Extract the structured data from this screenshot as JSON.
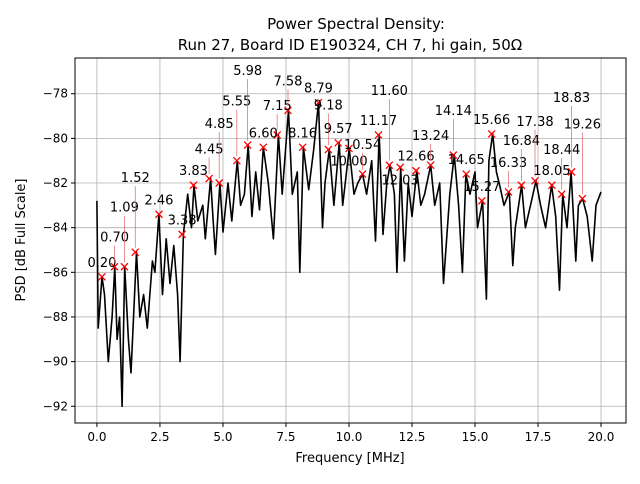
{
  "chart_data": {
    "type": "line",
    "title": "Power Spectral Density:",
    "subtitle": "Run 27, Board ID E190324, CH 7, hi gain, 50Ω",
    "xlabel": "Frequency [MHz]",
    "ylabel": "PSD [dB Full Scale]",
    "xlim": [
      -0.87,
      20.99
    ],
    "ylim": [
      -92.75,
      -76.4
    ],
    "xticks": [
      0.0,
      2.5,
      5.0,
      7.5,
      10.0,
      12.5,
      15.0,
      17.5,
      20.0
    ],
    "xtick_labels": [
      "0.0",
      "2.5",
      "5.0",
      "7.5",
      "10.0",
      "12.5",
      "15.0",
      "17.5",
      "20.0"
    ],
    "yticks": [
      -78,
      -80,
      -82,
      -84,
      -86,
      -88,
      -90,
      -92
    ],
    "ytick_labels": [
      "−78",
      "−80",
      "−82",
      "−84",
      "−86",
      "−88",
      "−90",
      "−92"
    ],
    "grid": true,
    "line_color": "#000000",
    "marker_color": "#ff0000",
    "series": [
      {
        "x": [
          0.0,
          0.05,
          0.2,
          0.3,
          0.45,
          0.6,
          0.71,
          0.8,
          0.9,
          1.0,
          1.1,
          1.25,
          1.35,
          1.57,
          1.7,
          1.85,
          2.0,
          2.2,
          2.3,
          2.46,
          2.6,
          2.75,
          2.9,
          3.05,
          3.2,
          3.3,
          3.43,
          3.6,
          3.75,
          3.85,
          4.0,
          4.2,
          4.3,
          4.51,
          4.6,
          4.7,
          4.88,
          5.0,
          5.2,
          5.35,
          5.57,
          5.7,
          5.85,
          6.0,
          6.15,
          6.3,
          6.45,
          6.6,
          6.8,
          7.0,
          7.2,
          7.35,
          7.6,
          7.75,
          7.95,
          8.05,
          8.19,
          8.4,
          8.6,
          8.79,
          8.95,
          9.05,
          9.22,
          9.4,
          9.61,
          9.75,
          10.01,
          10.2,
          10.35,
          10.54,
          10.7,
          10.9,
          11.05,
          11.2,
          11.35,
          11.5,
          11.63,
          11.8,
          11.9,
          12.05,
          12.2,
          12.35,
          12.5,
          12.69,
          12.85,
          13.0,
          13.24,
          13.4,
          13.6,
          13.75,
          14.0,
          14.18,
          14.35,
          14.5,
          14.64,
          14.8,
          15.0,
          15.1,
          15.3,
          15.45,
          15.55,
          15.7,
          15.85,
          16.0,
          16.15,
          16.36,
          16.5,
          16.6,
          16.85,
          17.0,
          17.2,
          17.42,
          17.6,
          17.8,
          18.04,
          18.2,
          18.35,
          18.48,
          18.65,
          18.81,
          19.0,
          19.1,
          19.27,
          19.45,
          19.65,
          19.8,
          20.0
        ],
        "y": [
          -82.8,
          -88.5,
          -86.2,
          -87,
          -90,
          -88,
          -85.75,
          -89,
          -88,
          -92,
          -85.75,
          -89,
          -90.5,
          -85.1,
          -88,
          -87,
          -88.5,
          -85.5,
          -86,
          -83.4,
          -87,
          -84.5,
          -86.5,
          -84.8,
          -87,
          -90,
          -84.3,
          -82.5,
          -84,
          -82.1,
          -83.7,
          -83,
          -84.5,
          -81.8,
          -83.5,
          -85.2,
          -82,
          -84.2,
          -82,
          -83.7,
          -81,
          -83,
          -82.5,
          -80.3,
          -83.5,
          -81.5,
          -83.2,
          -80.4,
          -82,
          -84.5,
          -79.85,
          -82.5,
          -78.75,
          -82.5,
          -81.5,
          -86,
          -80.4,
          -82.3,
          -80.5,
          -78.4,
          -84,
          -82,
          -80.5,
          -83,
          -80.2,
          -83,
          -80.45,
          -82.5,
          -82,
          -81.6,
          -82.5,
          -81,
          -84.6,
          -79.85,
          -84.3,
          -82,
          -81.2,
          -82.5,
          -86,
          -81.3,
          -85.5,
          -82,
          -83.5,
          -81.45,
          -83,
          -82.5,
          -81.2,
          -83,
          -82,
          -86.5,
          -82.5,
          -80.75,
          -83,
          -86,
          -81.6,
          -82.5,
          -81.5,
          -84,
          -82.8,
          -87.2,
          -81,
          -79.8,
          -81.5,
          -82.2,
          -83,
          -82.4,
          -85.7,
          -84,
          -82.1,
          -84,
          -83,
          -81.9,
          -83,
          -84,
          -82.1,
          -83.5,
          -86.8,
          -82.5,
          -84,
          -81.5,
          -85.5,
          -83,
          -82.7,
          -83.5,
          -85.5,
          -83,
          -82.4
        ]
      }
    ],
    "peaks": [
      {
        "x": 0.2,
        "y": -86.2,
        "label": "0.20"
      },
      {
        "x": 0.7,
        "y": -85.75,
        "label": "0.70"
      },
      {
        "x": 1.09,
        "y": -85.75,
        "label": "1.09"
      },
      {
        "x": 1.52,
        "y": -85.1,
        "label": "1.52"
      },
      {
        "x": 2.46,
        "y": -83.4,
        "label": "2.46"
      },
      {
        "x": 3.38,
        "y": -84.3,
        "label": "3.38"
      },
      {
        "x": 3.83,
        "y": -82.1,
        "label": "3.83"
      },
      {
        "x": 4.45,
        "y": -81.8,
        "label": "4.45"
      },
      {
        "x": 4.85,
        "y": -82.0,
        "label": "4.85"
      },
      {
        "x": 5.55,
        "y": -81.0,
        "label": "5.55"
      },
      {
        "x": 5.98,
        "y": -80.3,
        "label": "5.98"
      },
      {
        "x": 6.6,
        "y": -80.4,
        "label": "6.60"
      },
      {
        "x": 7.15,
        "y": -79.85,
        "label": "7.15"
      },
      {
        "x": 7.58,
        "y": -78.75,
        "label": "7.58"
      },
      {
        "x": 8.16,
        "y": -80.4,
        "label": "8.16"
      },
      {
        "x": 8.79,
        "y": -78.4,
        "label": "8.79"
      },
      {
        "x": 9.18,
        "y": -80.5,
        "label": "9.18"
      },
      {
        "x": 9.57,
        "y": -80.2,
        "label": "9.57"
      },
      {
        "x": 10.0,
        "y": -80.45,
        "label": "10.00"
      },
      {
        "x": 10.54,
        "y": -81.6,
        "label": "10.54"
      },
      {
        "x": 11.17,
        "y": -79.85,
        "label": "11.17"
      },
      {
        "x": 11.6,
        "y": -81.2,
        "label": "11.60"
      },
      {
        "x": 12.03,
        "y": -81.3,
        "label": "12.03"
      },
      {
        "x": 12.66,
        "y": -81.45,
        "label": "12.66"
      },
      {
        "x": 13.24,
        "y": -81.2,
        "label": "13.24"
      },
      {
        "x": 14.14,
        "y": -80.75,
        "label": "14.14"
      },
      {
        "x": 14.65,
        "y": -81.6,
        "label": "14.65"
      },
      {
        "x": 15.27,
        "y": -82.8,
        "label": "15.27"
      },
      {
        "x": 15.66,
        "y": -79.8,
        "label": "15.66"
      },
      {
        "x": 16.33,
        "y": -82.4,
        "label": "16.33"
      },
      {
        "x": 16.84,
        "y": -82.1,
        "label": "16.84"
      },
      {
        "x": 17.38,
        "y": -81.9,
        "label": "17.38"
      },
      {
        "x": 18.05,
        "y": -82.1,
        "label": "18.05"
      },
      {
        "x": 18.44,
        "y": -82.5,
        "label": "18.44"
      },
      {
        "x": 18.83,
        "y": -81.5,
        "label": "18.83"
      },
      {
        "x": 19.26,
        "y": -82.7,
        "label": "19.26"
      }
    ]
  }
}
